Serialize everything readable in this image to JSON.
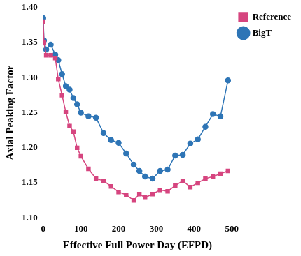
{
  "chart_data": {
    "type": "line",
    "x_label": "Effective Full Power Day (EFPD)",
    "y_label": "Axial Peaking Factor",
    "x": [
      0,
      2,
      8,
      20,
      32,
      40,
      50,
      60,
      70,
      80,
      90,
      100,
      120,
      140,
      160,
      180,
      200,
      220,
      240,
      255,
      270,
      290,
      310,
      330,
      350,
      370,
      390,
      410,
      430,
      450,
      470,
      490
    ],
    "series": [
      {
        "name": "Reference",
        "color": "#d6457f",
        "marker": "square",
        "values": [
          1.38,
          1.35,
          1.332,
          1.332,
          1.328,
          1.298,
          1.275,
          1.251,
          1.231,
          1.223,
          1.2,
          1.188,
          1.17,
          1.156,
          1.153,
          1.145,
          1.137,
          1.133,
          1.125,
          1.134,
          1.129,
          1.134,
          1.14,
          1.138,
          1.146,
          1.153,
          1.144,
          1.15,
          1.156,
          1.159,
          1.163,
          1.167
        ]
      },
      {
        "name": "BigT",
        "color": "#2e75b6",
        "marker": "circle",
        "values": [
          1.385,
          1.353,
          1.34,
          1.347,
          1.333,
          1.325,
          1.305,
          1.288,
          1.283,
          1.271,
          1.262,
          1.25,
          1.245,
          1.243,
          1.221,
          1.211,
          1.207,
          1.192,
          1.176,
          1.167,
          1.159,
          1.156,
          1.167,
          1.169,
          1.189,
          1.19,
          1.206,
          1.212,
          1.23,
          1.248,
          1.245,
          1.296
        ]
      }
    ],
    "xlim": [
      0,
      500
    ],
    "xticks": [
      0,
      100,
      200,
      300,
      400,
      500
    ],
    "ylim": [
      1.1,
      1.4
    ],
    "yticks": [
      {
        "value": 1.1,
        "label": "1.10"
      },
      {
        "value": 1.15,
        "label": "1.15"
      },
      {
        "value": 1.2,
        "label": "1.20"
      },
      {
        "value": 1.25,
        "label": "1.25"
      },
      {
        "value": 1.3,
        "label": "1.30"
      },
      {
        "value": 1.35,
        "label": "1.35"
      },
      {
        "value": 1.4,
        "label": "1.40"
      }
    ],
    "grid": false,
    "legend": "upper right"
  }
}
